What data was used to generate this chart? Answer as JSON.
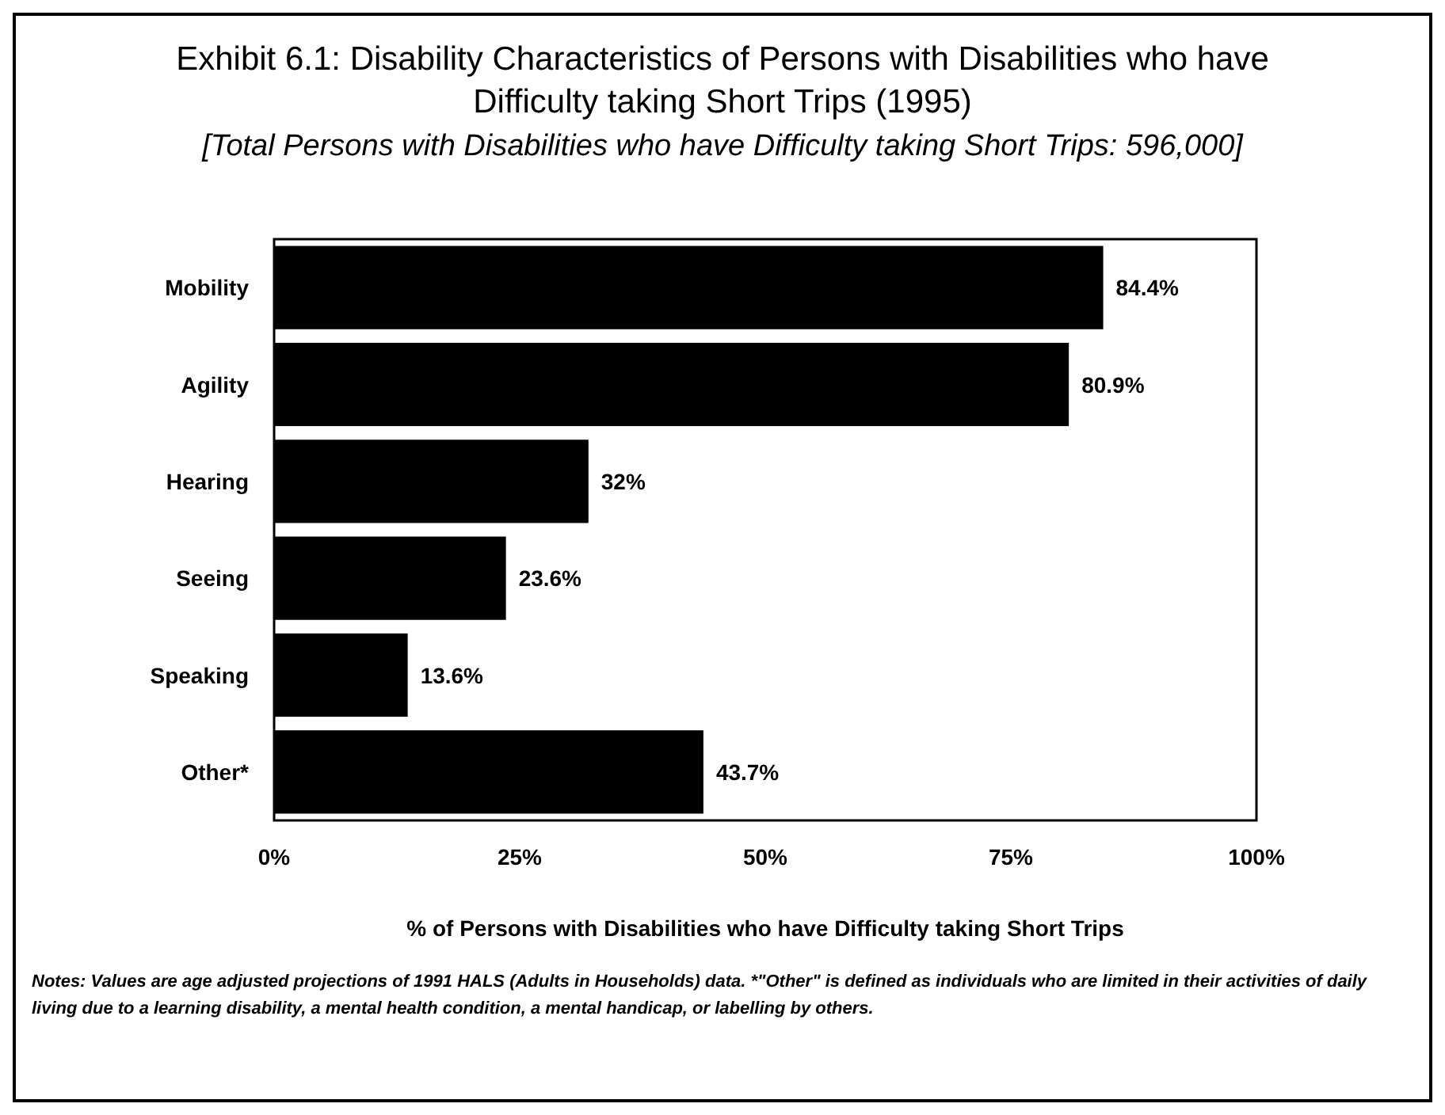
{
  "chart_data": {
    "type": "bar",
    "orientation": "horizontal",
    "title": "Exhibit 6.1: Disability Characteristics of Persons with Disabilities who have Difficulty taking Short Trips (1995)",
    "subtitle": "[Total Persons with Disabilities who have Difficulty taking Short Trips: 596,000]",
    "xlabel": "% of Persons with Disabilities who have Difficulty taking Short Trips",
    "categories": [
      "Mobility",
      "Agility",
      "Hearing",
      "Seeing",
      "Speaking",
      "Other*"
    ],
    "values": [
      84.4,
      80.9,
      32,
      23.6,
      13.6,
      43.7
    ],
    "value_labels": [
      "84.4%",
      "80.9%",
      "32%",
      "23.6%",
      "13.6%",
      "43.7%"
    ],
    "color": "#000000",
    "xlim": [
      0,
      100
    ],
    "xticks": [
      {
        "value": 0,
        "label": "0%"
      },
      {
        "value": 25,
        "label": "25%"
      },
      {
        "value": 50,
        "label": "50%"
      },
      {
        "value": 75,
        "label": "75%"
      },
      {
        "value": 100,
        "label": "100%"
      }
    ],
    "annotations": [
      "Notes: Values are age adjusted projections of 1991 HALS (Adults in Households) data. *\"Other\" is defined as individuals who are limited in their activities of daily living due to a learning disability, a mental health condition, a mental handicap, or labelling by others."
    ]
  }
}
